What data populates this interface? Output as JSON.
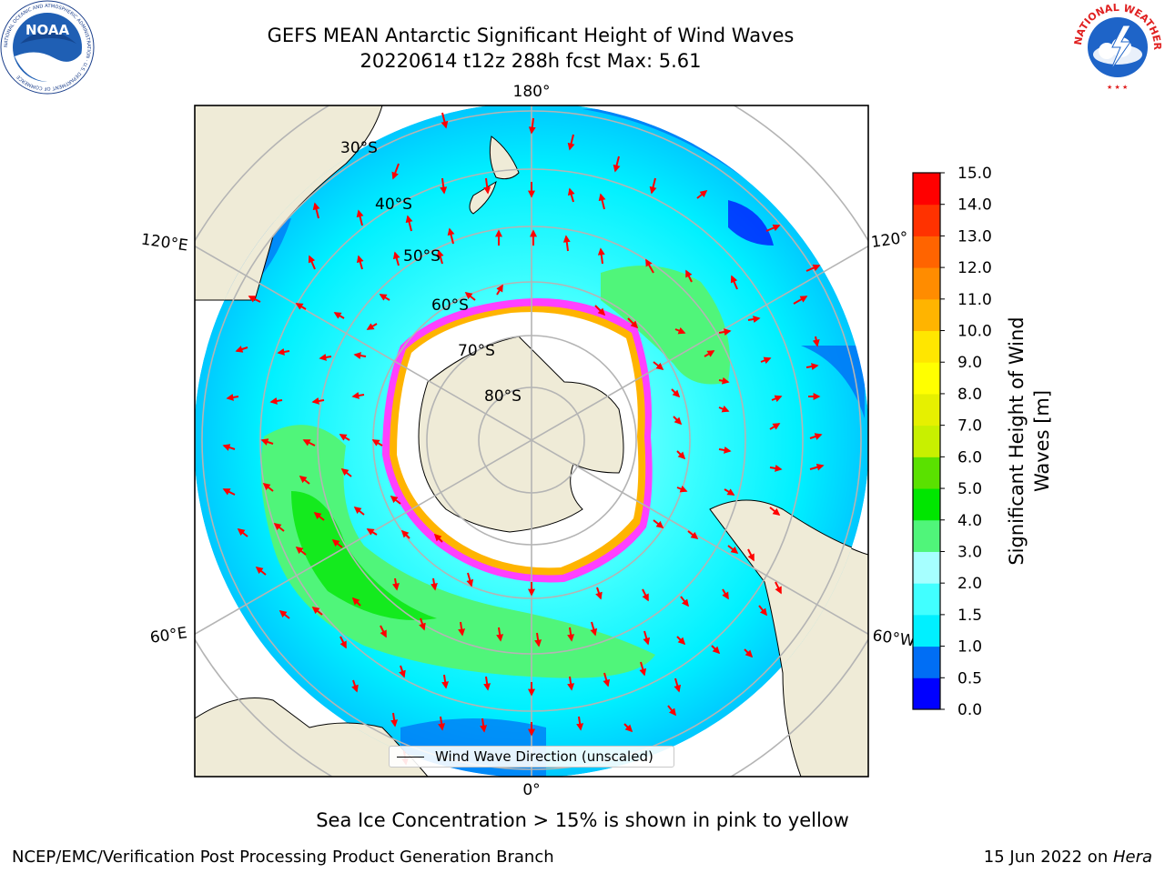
{
  "title": {
    "line1": "GEFS MEAN Antarctic Significant Height of Wind Waves",
    "line2": "20220614 t12z 288h fcst   Max: 5.61"
  },
  "logos": {
    "noaa": {
      "text": "NOAA",
      "ring": "NATIONAL OCEANIC AND ATMOSPHERIC ADMINISTRATION · U.S. DEPARTMENT OF COMMERCE"
    },
    "nws": {
      "ring": "NATIONAL WEATHER SERVICE"
    }
  },
  "map": {
    "projection": "south-polar-stereographic",
    "latitude_labels": [
      "30°S",
      "40°S",
      "50°S",
      "60°S",
      "70°S",
      "80°S"
    ],
    "longitude_labels": {
      "top": "180°",
      "bottom": "0°",
      "upper_left": "120°E",
      "lower_left": "60°E",
      "upper_right": "120°",
      "lower_right": "60°W"
    },
    "colors": {
      "land": "#efebd7",
      "ice": "#ffffff",
      "ocean_base": "#00f0ff",
      "arrow": "#ff0000",
      "grid": "#b4b4b4"
    }
  },
  "legend": {
    "label": "Wind Wave Direction (unscaled)"
  },
  "colorbar": {
    "title_line1": "Significant Height of Wind",
    "title_line2": "Waves [m]",
    "ticks": [
      "0.0",
      "0.5",
      "1.0",
      "1.5",
      "2.0",
      "3.0",
      "4.0",
      "5.0",
      "6.0",
      "7.0",
      "8.0",
      "9.0",
      "10.0",
      "11.0",
      "12.0",
      "13.0",
      "14.0",
      "15.0"
    ],
    "colors": [
      "#0000ff",
      "#006ef5",
      "#00f0ff",
      "#41ffff",
      "#a6ffff",
      "#50f57a",
      "#00e600",
      "#5ae100",
      "#c8f000",
      "#e6f000",
      "#ffff00",
      "#ffe600",
      "#ffb400",
      "#ff8c00",
      "#ff6400",
      "#ff3200",
      "#ff0000"
    ]
  },
  "sea_ice_note": "Sea Ice Concentration > 15% is shown in pink to yellow",
  "footer": {
    "left": "NCEP/EMC/Verification Post Processing Product Generation Branch",
    "right_date": "15 Jun 2022 on ",
    "right_machine": "Hera"
  }
}
